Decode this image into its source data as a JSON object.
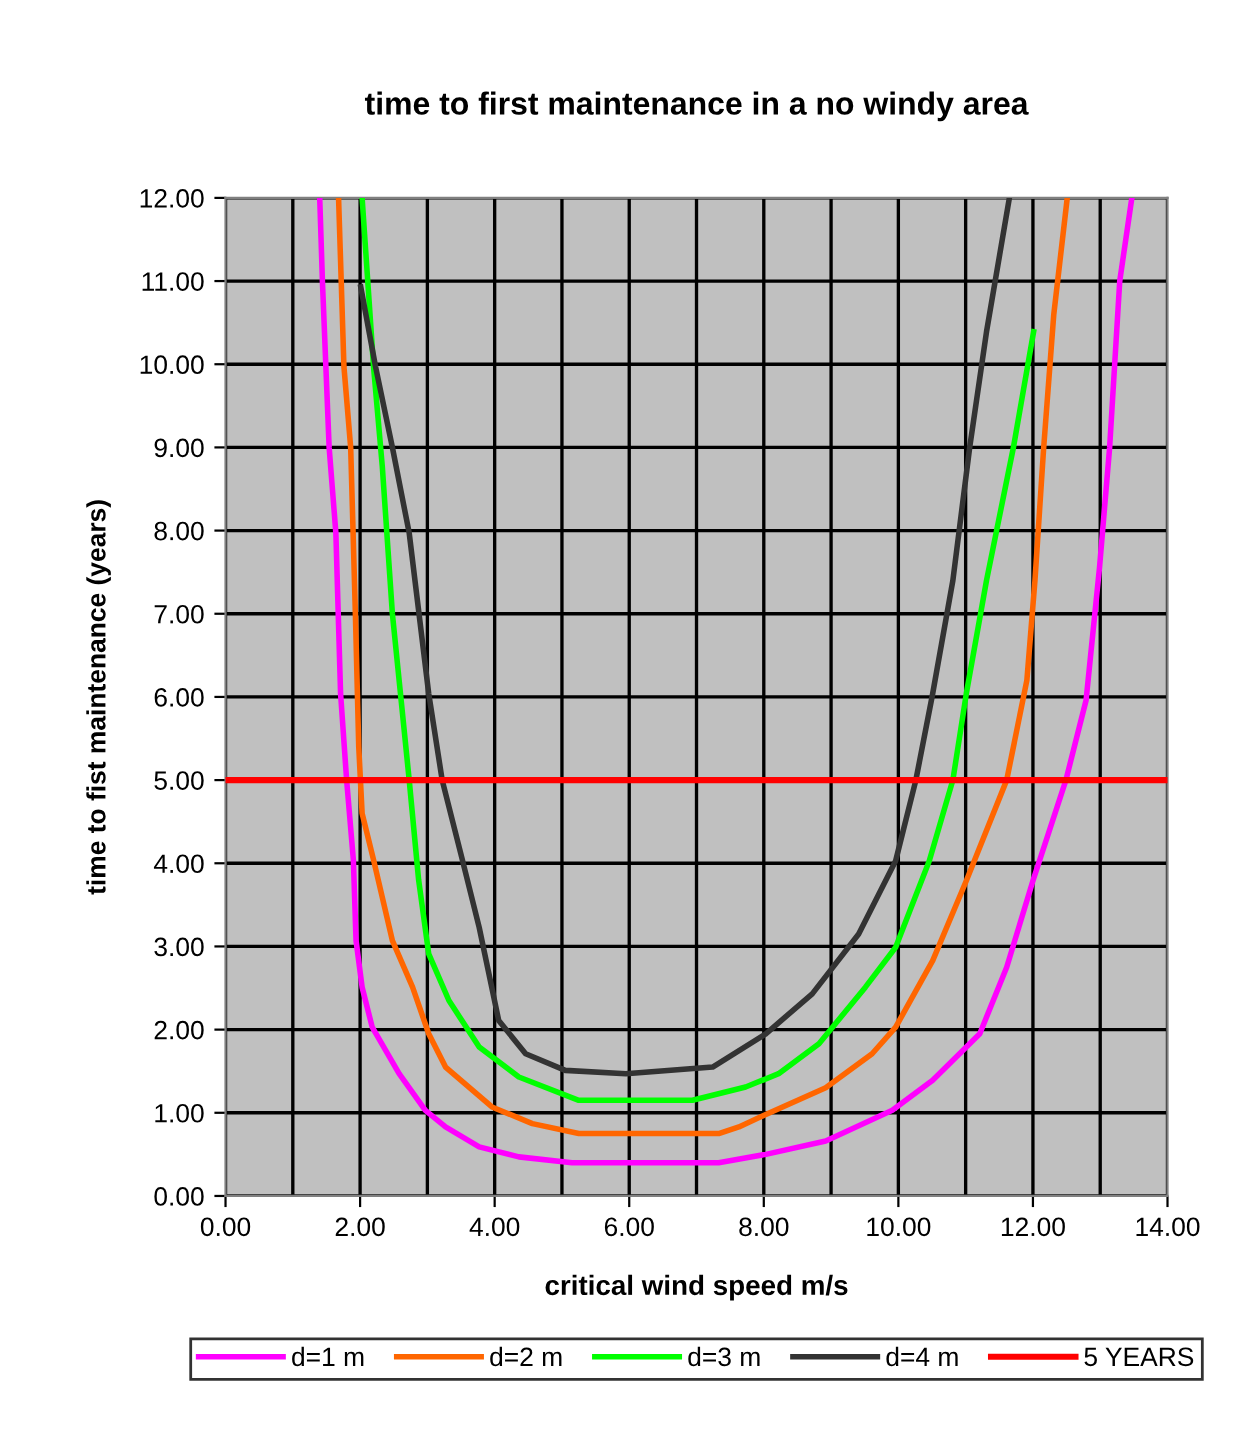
{
  "chart_data": {
    "type": "line",
    "title": "time to first maintenance in a no windy area",
    "xlabel": "critical wind speed m/s",
    "ylabel": "time to fist maintenance (years)",
    "series": [
      {
        "name": "d=1 m",
        "color": "#ff00ff",
        "x": [
          1.4,
          1.44,
          1.54,
          1.64,
          1.71,
          1.8,
          1.9,
          1.94,
          2.03,
          2.18,
          2.58,
          2.97,
          3.27,
          3.77,
          4.36,
          5.15,
          6.74,
          7.33,
          8.03,
          8.92,
          9.91,
          10.51,
          11.21,
          11.61,
          12.0,
          12.49,
          12.79,
          12.99,
          13.14,
          13.29,
          13.47
        ],
        "values": [
          12.0,
          11.0,
          9.0,
          7.97,
          6.04,
          5.0,
          4.04,
          3.07,
          2.51,
          2.03,
          1.47,
          1.03,
          0.83,
          0.59,
          0.47,
          0.4,
          0.4,
          0.4,
          0.5,
          0.66,
          1.03,
          1.39,
          1.95,
          2.75,
          3.79,
          5.0,
          5.96,
          7.56,
          9.0,
          11.0,
          12.0
        ]
      },
      {
        "name": "d=2 m",
        "color": "#ff6600",
        "x": [
          1.68,
          1.76,
          1.86,
          1.93,
          1.98,
          2.03,
          2.2,
          2.48,
          2.78,
          3.02,
          3.27,
          3.96,
          4.56,
          5.25,
          6.74,
          7.33,
          7.63,
          8.03,
          8.92,
          9.61,
          9.96,
          10.51,
          11.01,
          11.61,
          11.91,
          12.03,
          12.16,
          12.31,
          12.51
        ],
        "values": [
          12.0,
          9.97,
          9.0,
          7.0,
          5.4,
          4.6,
          4.04,
          3.07,
          2.51,
          1.95,
          1.55,
          1.07,
          0.87,
          0.75,
          0.75,
          0.75,
          0.83,
          0.98,
          1.3,
          1.71,
          2.03,
          2.83,
          3.79,
          5.0,
          6.2,
          7.4,
          9.0,
          10.6,
          12.0
        ]
      },
      {
        "name": "d=3 m",
        "color": "#00ff00",
        "x": [
          2.03,
          2.2,
          2.33,
          2.48,
          2.63,
          2.73,
          2.87,
          3.02,
          3.32,
          3.77,
          4.36,
          5.25,
          6.94,
          7.73,
          8.22,
          8.82,
          9.51,
          9.96,
          10.46,
          10.81,
          11.01,
          11.31,
          11.71,
          12.01
        ],
        "values": [
          12.0,
          9.97,
          8.77,
          7.0,
          5.8,
          5.0,
          3.8,
          2.91,
          2.35,
          1.79,
          1.43,
          1.15,
          1.15,
          1.31,
          1.47,
          1.83,
          2.51,
          2.99,
          4.03,
          5.0,
          6.04,
          7.4,
          9.0,
          10.39
        ]
      },
      {
        "name": "d=4 m",
        "color": "#333333",
        "x": [
          2.01,
          2.23,
          2.48,
          2.73,
          3.02,
          3.22,
          3.52,
          3.77,
          4.06,
          4.46,
          5.05,
          5.95,
          7.24,
          8.03,
          8.72,
          9.41,
          9.96,
          10.26,
          10.51,
          10.81,
          11.06,
          11.31,
          11.65
        ],
        "values": [
          10.93,
          9.97,
          9.0,
          7.97,
          6.04,
          5.0,
          4.04,
          3.23,
          2.11,
          1.71,
          1.51,
          1.47,
          1.55,
          1.95,
          2.43,
          3.15,
          4.03,
          5.0,
          6.04,
          7.4,
          9.0,
          10.39,
          12.0
        ]
      }
    ],
    "ref_lines": [
      {
        "axis": "y",
        "value": 5,
        "label": "5 YEARS",
        "color": "#ff0000"
      }
    ],
    "xlim": [
      0,
      14
    ],
    "ylim": [
      0,
      12
    ],
    "xticks": [
      {
        "value": 0,
        "label": "0.00"
      },
      {
        "value": 2,
        "label": "2.00"
      },
      {
        "value": 4,
        "label": "4.00"
      },
      {
        "value": 6,
        "label": "6.00"
      },
      {
        "value": 8,
        "label": "8.00"
      },
      {
        "value": 10,
        "label": "10.00"
      },
      {
        "value": 12,
        "label": "12.00"
      },
      {
        "value": 14,
        "label": "14.00"
      }
    ],
    "yticks": [
      {
        "value": 0,
        "label": "0.00"
      },
      {
        "value": 1,
        "label": "1.00"
      },
      {
        "value": 2,
        "label": "2.00"
      },
      {
        "value": 3,
        "label": "3.00"
      },
      {
        "value": 4,
        "label": "4.00"
      },
      {
        "value": 5,
        "label": "5.00"
      },
      {
        "value": 6,
        "label": "6.00"
      },
      {
        "value": 7,
        "label": "7.00"
      },
      {
        "value": 8,
        "label": "8.00"
      },
      {
        "value": 9,
        "label": "9.00"
      },
      {
        "value": 10,
        "label": "10.00"
      },
      {
        "value": 11,
        "label": "11.00"
      },
      {
        "value": 12,
        "label": "12.00"
      }
    ],
    "grid": true,
    "legend": "bottom",
    "marker": "none",
    "line_style": "solid"
  }
}
